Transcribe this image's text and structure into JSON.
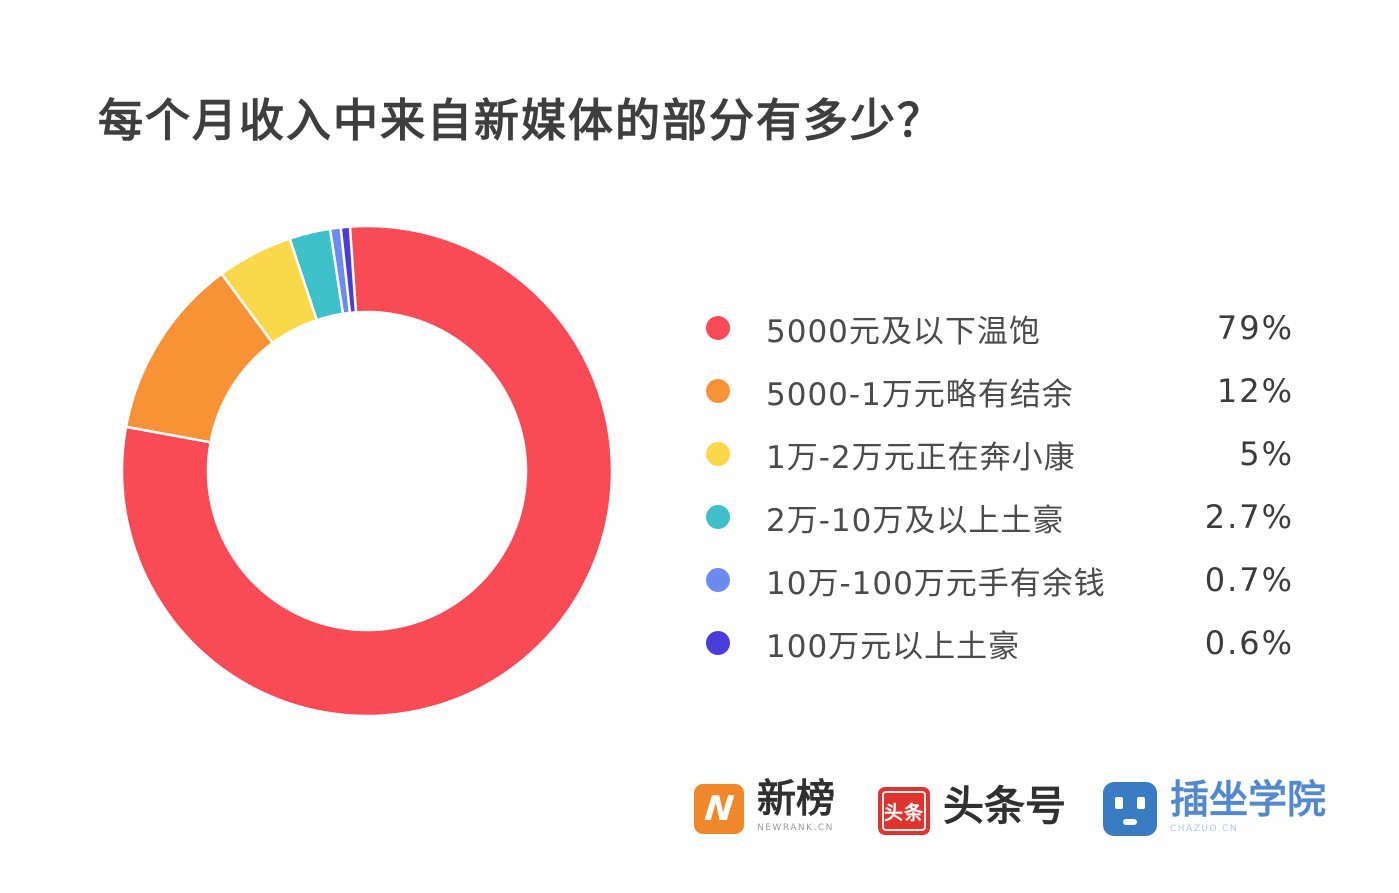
{
  "title": "每个月收入中来自新媒体的部分有多少？",
  "chart_data": {
    "type": "pie",
    "subtype": "donut",
    "title": "每个月收入中来自新媒体的部分有多少？",
    "unit": "%",
    "total": 100,
    "start_angle_deg": -4,
    "direction": "clockwise",
    "legend_position": "right",
    "hole_color": "#ffffff",
    "series": [
      {
        "label": "5000元及以下温饱",
        "value": 79,
        "display_value": "79%",
        "color": "#f94b55"
      },
      {
        "label": "5000-1万元略有结余",
        "value": 12,
        "display_value": "12%",
        "color": "#f99136"
      },
      {
        "label": "1万-2万元正在奔小康",
        "value": 5,
        "display_value": "5%",
        "color": "#fbd74b"
      },
      {
        "label": "2万-10万及以上土豪",
        "value": 2.7,
        "display_value": "2.7%",
        "color": "#3fbfc9"
      },
      {
        "label": "10万-100万元手有余钱",
        "value": 0.7,
        "display_value": "0.7%",
        "color": "#6d8bee"
      },
      {
        "label": "100万元以上土豪",
        "value": 0.6,
        "display_value": "0.6%",
        "color": "#4b3bd8"
      }
    ]
  },
  "footer": {
    "logos": [
      {
        "name": "newrank",
        "badge_text": "N",
        "label": "新榜",
        "sub_label": "NEWRANK.CN",
        "badge_color": "#f0882b",
        "label_color": "#303030"
      },
      {
        "name": "toutiao",
        "badge_text": "头条",
        "label": "头条号",
        "sub_label": "",
        "badge_color": "#de342f",
        "label_color": "#303030"
      },
      {
        "name": "chazuo",
        "badge_text": "",
        "label": "插坐学院",
        "sub_label": "CHAZUO.CN",
        "badge_color": "#3a7cc2",
        "label_color": "#5388cf"
      }
    ]
  }
}
